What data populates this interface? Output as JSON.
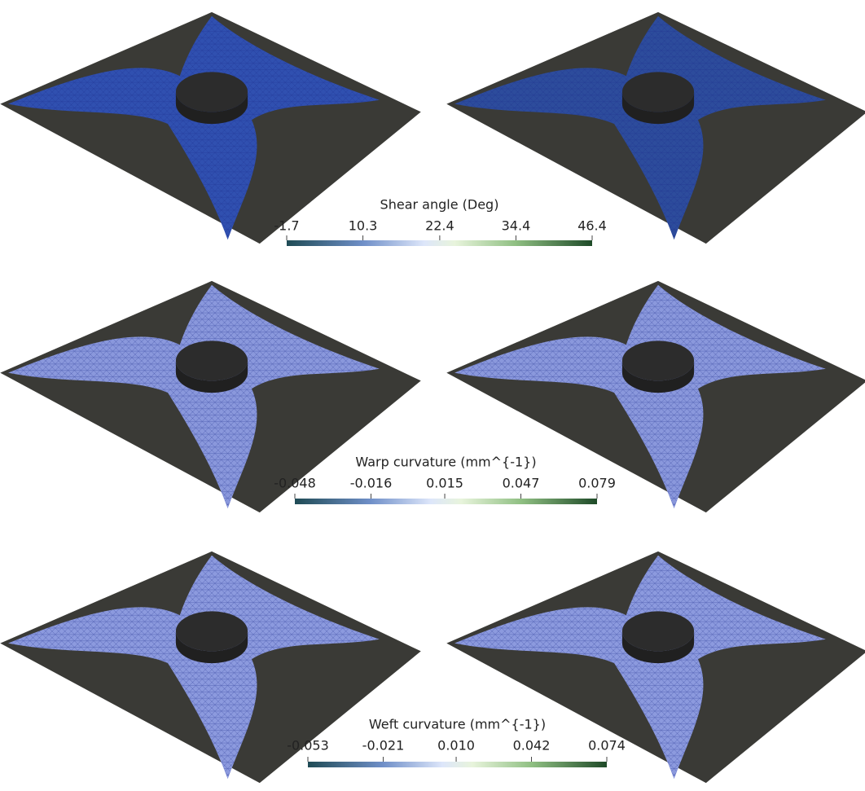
{
  "colorbars": [
    {
      "title": "Shear angle (Deg)",
      "lim": [
        -1.7,
        46.4
      ],
      "ticks": [
        -1.7,
        10.3,
        22.4,
        34.4,
        46.4
      ]
    },
    {
      "title": "Warp curvature (mm^{-1})",
      "lim": [
        -0.048,
        0.079
      ],
      "ticks": [
        -0.048,
        -0.016,
        0.015,
        0.047,
        0.079
      ]
    },
    {
      "title": "Weft curvature (mm^{-1})",
      "lim": [
        -0.053,
        0.074
      ],
      "ticks": [
        -0.053,
        -0.021,
        {
          "value": 0.01,
          "label": "0.010"
        },
        0.042,
        0.074
      ]
    }
  ]
}
